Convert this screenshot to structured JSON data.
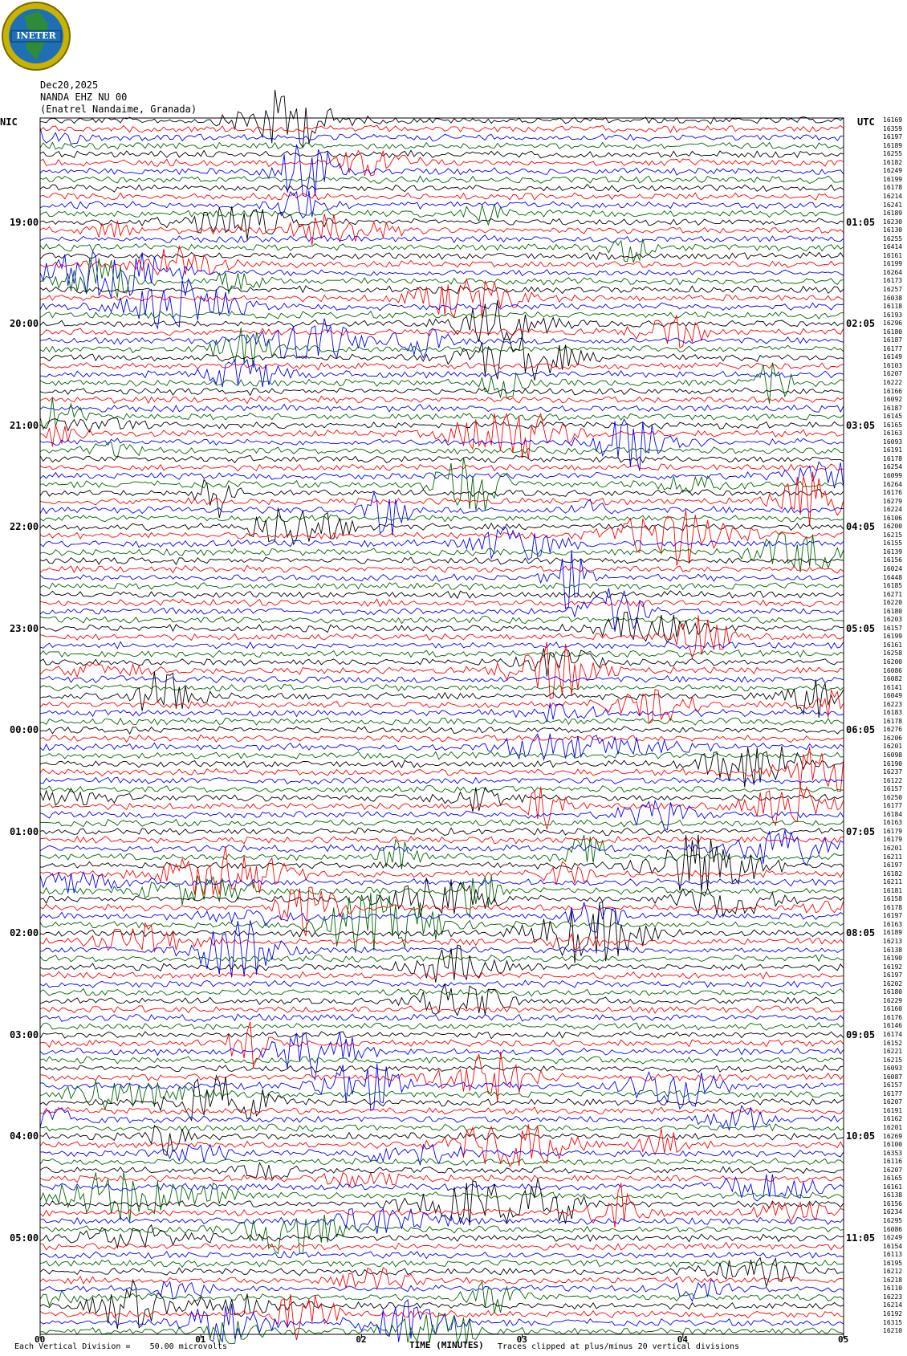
{
  "header": {
    "logo_text": "INETER",
    "date": "Dec20,2025",
    "station": "NANDA EHZ NU 00",
    "location": "(Enatrel Nandaime, Granada)",
    "left_tz": "NIC",
    "right_tz": "UTC"
  },
  "footer": {
    "scale_note": "Each Vertical Division =    50.00 microvolts",
    "x_axis_label": "TIME (MINUTES)",
    "clip_note": "Traces clipped at plus/minus 20 vertical divisions"
  },
  "colors": {
    "trace_cycle": [
      "#000000",
      "#ff0000",
      "#0000ff",
      "#006400"
    ],
    "logo_ring": "#c8b400",
    "logo_blue": "#1e6fb5",
    "logo_green": "#2e8b3a"
  },
  "chart_data": {
    "type": "line",
    "title": "Dec20,2025 NANDA EHZ NU 00 (Enatrel Nandaime, Granada)",
    "xlabel": "TIME (MINUTES)",
    "xlim": [
      0,
      5
    ],
    "x_ticks": [
      "00",
      "01",
      "02",
      "03",
      "04",
      "05"
    ],
    "left_time_labels": [
      "19:00",
      "20:00",
      "21:00",
      "22:00",
      "23:00",
      "00:00",
      "01:00",
      "02:00",
      "03:00",
      "04:00",
      "05:00"
    ],
    "right_time_labels": [
      "01:05",
      "02:05",
      "03:05",
      "04:05",
      "05:05",
      "06:05",
      "07:05",
      "08:05",
      "09:05",
      "10:05",
      "11:05"
    ],
    "trace_count": 144,
    "traces_per_hour": 12,
    "vertical_division_microvolts": 50.0,
    "clip_divisions": 20,
    "right_trace_values": [
      16169,
      16359,
      16197,
      16189,
      16255,
      16182,
      16249,
      16199,
      16178,
      16214,
      16241,
      16189,
      16230,
      16130,
      16255,
      16414,
      16161,
      16199,
      16264,
      16173,
      16257,
      16038,
      16118,
      16193,
      16296,
      16180,
      16187,
      16177,
      16149,
      16103,
      16207,
      16222,
      16166,
      16092,
      16187,
      16145,
      16165,
      16163,
      16093,
      16191,
      16178,
      16254,
      16099,
      16264,
      16176,
      16279,
      16224,
      16106,
      16200,
      16215,
      16155,
      16139,
      16156,
      16024,
      16448,
      16185,
      16271,
      16220,
      16180,
      16203,
      16157,
      16199,
      16161,
      16258,
      16200,
      16086,
      16082,
      16141,
      16049,
      16223,
      16183,
      16178,
      16276,
      16206,
      16201,
      16098,
      16190,
      16237,
      16122,
      16157,
      16250,
      16177,
      16184,
      16163,
      16179,
      16179,
      16201,
      16211,
      16197,
      16182,
      16211,
      16181,
      16158,
      16178,
      16197,
      16163,
      16189,
      16213,
      16138,
      16190,
      16192,
      16197,
      16202,
      16180,
      16229,
      16160,
      16176,
      16146,
      16174,
      16152,
      16221,
      16215,
      16093,
      16087,
      16157,
      16177,
      16207,
      16191,
      16162,
      16201,
      16269,
      16100,
      16353,
      16116,
      16207,
      16165,
      16161,
      16138,
      16156,
      16234,
      16295,
      16086,
      16249,
      16154,
      16113,
      16195,
      16212,
      16218,
      16110,
      16223,
      16214,
      16192,
      16315,
      16210
    ]
  }
}
